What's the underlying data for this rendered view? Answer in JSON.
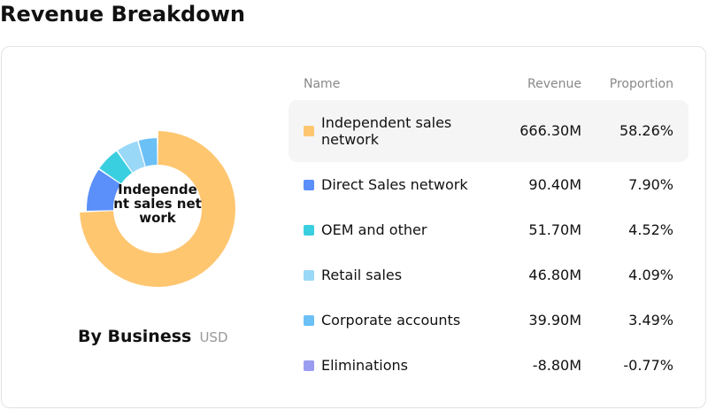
{
  "page_title": "Revenue Breakdown",
  "table_headers": {
    "name": "Name",
    "revenue": "Revenue",
    "proportion": "Proportion"
  },
  "chart_data": {
    "type": "pie",
    "title": "By Business",
    "unit": "USD",
    "center_label": "Independent sales network",
    "highlighted": 0,
    "categories": [
      "Independent sales network",
      "Direct Sales network",
      "OEM and other",
      "Retail sales",
      "Corporate accounts",
      "Eliminations"
    ],
    "values": [
      666.3,
      90.4,
      51.7,
      46.8,
      39.9,
      -8.8
    ],
    "revenue_labels": [
      "666.30M",
      "90.40M",
      "51.70M",
      "46.80M",
      "39.90M",
      "-8.80M"
    ],
    "proportion_labels": [
      "58.26%",
      "7.90%",
      "4.52%",
      "4.09%",
      "3.49%",
      "-0.77%"
    ],
    "colors": [
      "#ffc670",
      "#5b8ff9",
      "#3acfe0",
      "#9ad8f7",
      "#6bc0f5",
      "#9a9cf0"
    ]
  }
}
